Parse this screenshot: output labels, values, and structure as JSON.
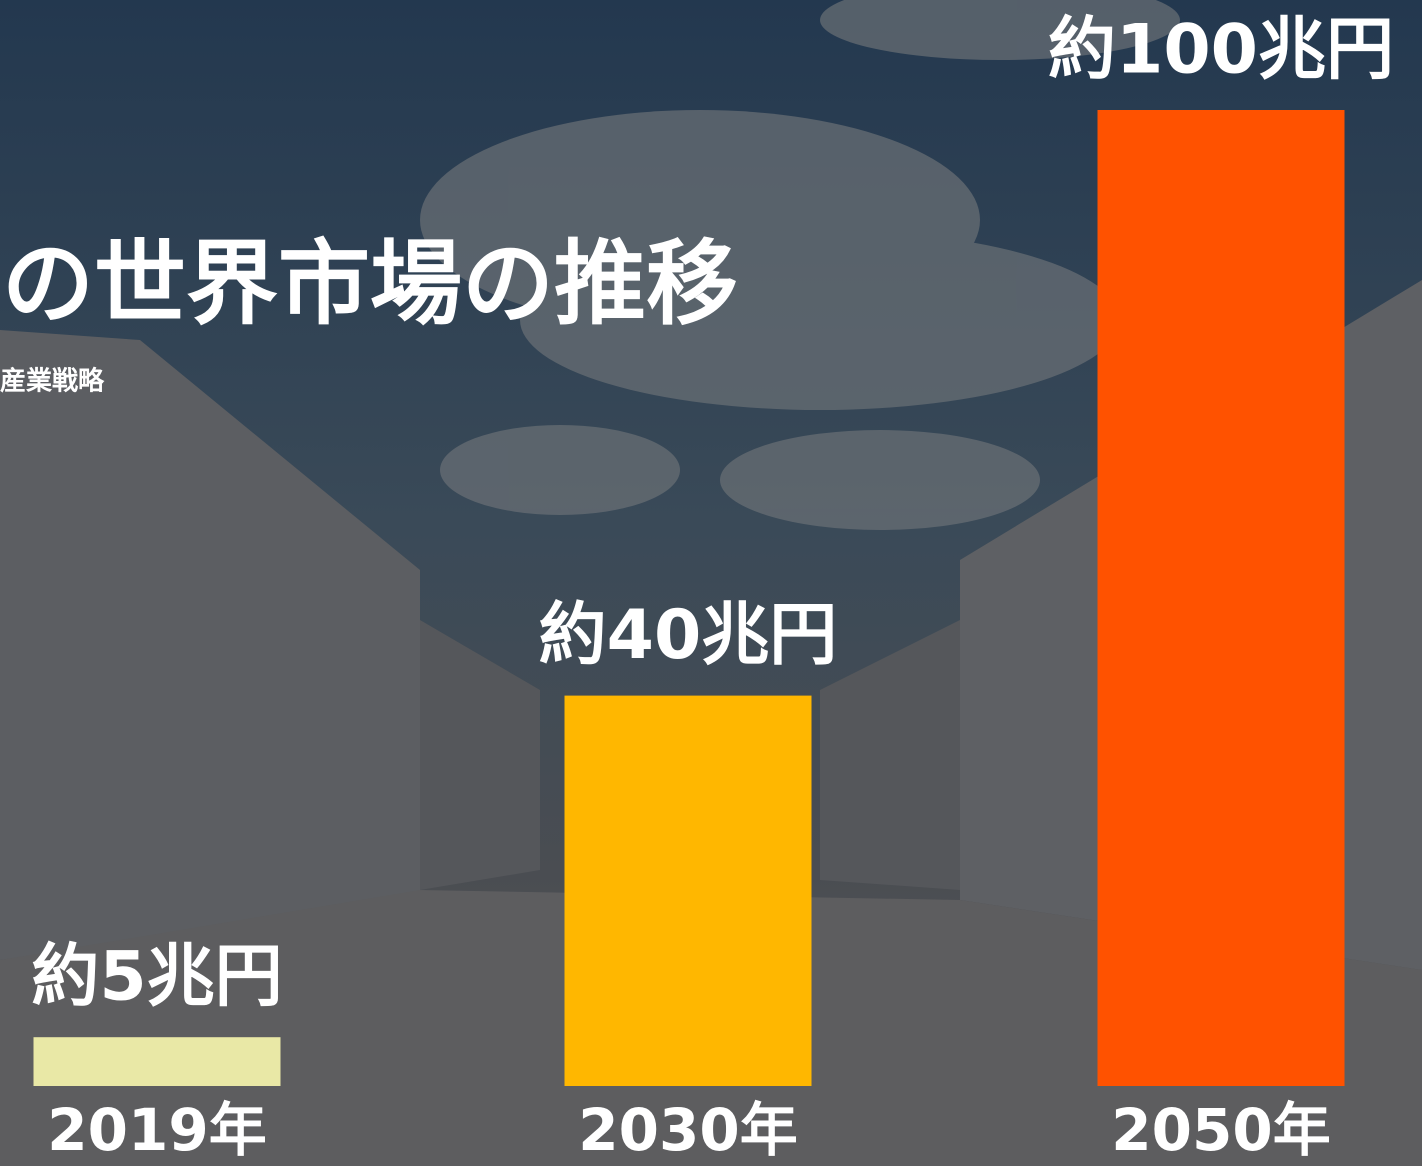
{
  "chart_data": {
    "type": "bar",
    "title": "の世界市場の推移",
    "subtitle": "産業戦略",
    "categories": [
      "2019年",
      "2030年",
      "2050年"
    ],
    "values": [
      5,
      40,
      100
    ],
    "value_labels": [
      "約5兆円",
      "約40兆円",
      "約100兆円"
    ],
    "colors": [
      "#e9e8a6",
      "#ffb700",
      "#ff5200"
    ],
    "ylim": [
      0,
      100
    ]
  }
}
